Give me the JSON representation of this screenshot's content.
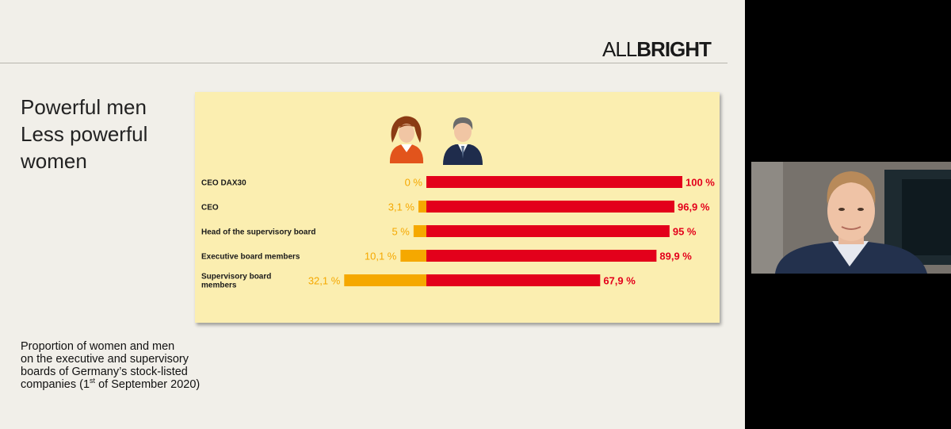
{
  "slide": {
    "logo": {
      "part1": "ALL",
      "part2": "BRIGHT"
    },
    "headline": [
      "Powerful men",
      "Less powerful",
      "women"
    ],
    "caption": {
      "lines": [
        "Proportion of women and men",
        "on the executive and supervisory",
        "boards of Germany’s stock-listed"
      ],
      "last_prefix": "companies (1",
      "last_sup": "st",
      "last_suffix": " of September 2020)"
    }
  },
  "icons": {
    "woman": "woman-avatar-icon",
    "man": "man-avatar-icon"
  },
  "colors": {
    "women": "#f5a800",
    "men": "#e3001b",
    "panel": "#fbeeb0"
  },
  "chart_data": {
    "type": "bar",
    "orientation": "horizontal-diverging",
    "categories": [
      [
        "CEO DAX30"
      ],
      [
        "CEO"
      ],
      [
        "Head of the supervisory board"
      ],
      [
        "Executive board members"
      ],
      [
        "Supervisory board",
        "members"
      ]
    ],
    "series": [
      {
        "name": "women",
        "values": [
          0,
          3.1,
          5,
          10.1,
          32.1
        ],
        "labels": [
          "0 %",
          "3,1 %",
          "5 %",
          "10,1 %",
          "32,1 %"
        ]
      },
      {
        "name": "men",
        "values": [
          100,
          96.9,
          95,
          89.9,
          67.9
        ],
        "labels": [
          "100 %",
          "96,9 %",
          "95 %",
          "89,9 %",
          "67,9 %"
        ]
      }
    ],
    "xlim": [
      0,
      100
    ]
  }
}
